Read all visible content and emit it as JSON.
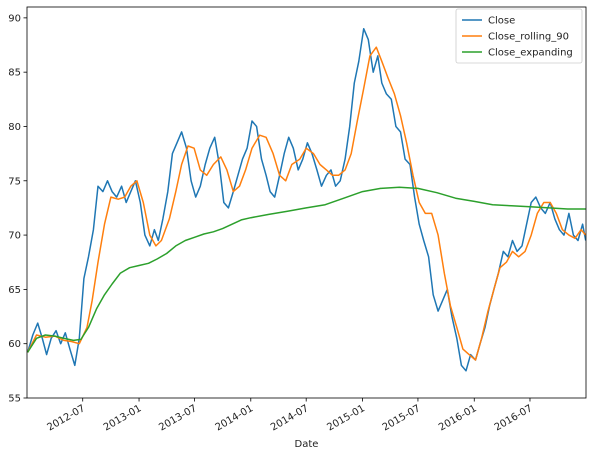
{
  "chart_data": {
    "type": "line",
    "title": "",
    "xlabel": "Date",
    "ylabel": "",
    "xlim": [
      "2012-01-01",
      "2016-12-31"
    ],
    "ylim": [
      55,
      91
    ],
    "grid": false,
    "legend_position": "top-right",
    "x_ticks": [
      "2012-07",
      "2013-01",
      "2013-07",
      "2014-01",
      "2014-07",
      "2015-01",
      "2015-07",
      "2016-01",
      "2016-07"
    ],
    "y_ticks": [
      55,
      60,
      65,
      70,
      75,
      80,
      85,
      90
    ],
    "series": [
      {
        "name": "Close",
        "color": "#1f77b4",
        "x": [
          "2012-01-03",
          "2012-01-20",
          "2012-02-05",
          "2012-02-20",
          "2012-03-05",
          "2012-03-20",
          "2012-04-05",
          "2012-04-20",
          "2012-05-05",
          "2012-05-20",
          "2012-06-05",
          "2012-06-20",
          "2012-07-05",
          "2012-07-20",
          "2012-08-05",
          "2012-08-20",
          "2012-09-05",
          "2012-09-20",
          "2012-10-05",
          "2012-10-20",
          "2012-11-05",
          "2012-11-20",
          "2012-12-05",
          "2012-12-20",
          "2013-01-05",
          "2013-01-20",
          "2013-02-05",
          "2013-02-20",
          "2013-03-05",
          "2013-03-20",
          "2013-04-05",
          "2013-04-20",
          "2013-05-05",
          "2013-05-20",
          "2013-06-05",
          "2013-06-20",
          "2013-07-05",
          "2013-07-20",
          "2013-08-05",
          "2013-08-20",
          "2013-09-05",
          "2013-09-20",
          "2013-10-05",
          "2013-10-20",
          "2013-11-05",
          "2013-11-20",
          "2013-12-05",
          "2013-12-20",
          "2014-01-05",
          "2014-01-20",
          "2014-02-05",
          "2014-02-20",
          "2014-03-05",
          "2014-03-20",
          "2014-04-05",
          "2014-04-20",
          "2014-05-05",
          "2014-05-20",
          "2014-06-05",
          "2014-06-20",
          "2014-07-05",
          "2014-07-20",
          "2014-08-05",
          "2014-08-20",
          "2014-09-05",
          "2014-09-20",
          "2014-10-05",
          "2014-10-20",
          "2014-11-05",
          "2014-11-20",
          "2014-12-05",
          "2014-12-20",
          "2015-01-05",
          "2015-01-20",
          "2015-02-05",
          "2015-02-20",
          "2015-03-05",
          "2015-03-20",
          "2015-04-05",
          "2015-04-20",
          "2015-05-05",
          "2015-05-20",
          "2015-06-05",
          "2015-06-20",
          "2015-07-05",
          "2015-07-20",
          "2015-08-05",
          "2015-08-20",
          "2015-09-05",
          "2015-09-20",
          "2015-10-05",
          "2015-10-20",
          "2015-11-05",
          "2015-11-20",
          "2015-12-05",
          "2015-12-20",
          "2016-01-05",
          "2016-01-20",
          "2016-02-05",
          "2016-02-20",
          "2016-03-05",
          "2016-03-20",
          "2016-04-05",
          "2016-04-20",
          "2016-05-05",
          "2016-05-20",
          "2016-06-05",
          "2016-06-20",
          "2016-07-05",
          "2016-07-20",
          "2016-08-05",
          "2016-08-20",
          "2016-09-05",
          "2016-09-20",
          "2016-10-05",
          "2016-10-20",
          "2016-11-05",
          "2016-11-20",
          "2016-12-05",
          "2016-12-20",
          "2016-12-30"
        ],
        "y": [
          59.2,
          60.8,
          61.9,
          60.5,
          59.0,
          60.5,
          61.2,
          60.0,
          61.0,
          59.5,
          58.0,
          60.5,
          66.0,
          68.0,
          70.5,
          74.5,
          74.0,
          75.0,
          74.0,
          73.5,
          74.5,
          73.0,
          74.0,
          75.0,
          73.0,
          70.0,
          69.0,
          70.5,
          69.5,
          71.5,
          74.0,
          77.5,
          78.5,
          79.5,
          78.0,
          75.0,
          73.5,
          74.5,
          76.5,
          78.0,
          79.0,
          76.5,
          73.0,
          72.5,
          74.0,
          75.5,
          77.0,
          78.0,
          80.5,
          80.0,
          77.0,
          75.5,
          74.0,
          73.5,
          75.5,
          77.5,
          79.0,
          78.0,
          76.0,
          77.0,
          78.5,
          77.5,
          76.0,
          74.5,
          75.5,
          76.0,
          74.5,
          75.0,
          77.0,
          80.0,
          84.0,
          86.0,
          89.0,
          88.0,
          85.0,
          86.5,
          84.0,
          83.0,
          82.5,
          80.0,
          79.5,
          77.0,
          76.5,
          73.5,
          71.0,
          69.5,
          68.0,
          64.5,
          63.0,
          64.0,
          65.0,
          62.5,
          60.5,
          58.0,
          57.5,
          59.0,
          58.5,
          60.0,
          61.5,
          63.5,
          65.0,
          66.5,
          68.5,
          68.0,
          69.5,
          68.5,
          69.0,
          71.0,
          73.0,
          73.5,
          72.5,
          72.0,
          73.0,
          71.5,
          70.5,
          70.0,
          72.0,
          70.0,
          69.5,
          71.0,
          69.5
        ]
      },
      {
        "name": "Close_rolling_90",
        "color": "#ff7f0e",
        "x": [
          "2012-01-03",
          "2012-02-01",
          "2012-03-01",
          "2012-04-01",
          "2012-05-01",
          "2012-05-25",
          "2012-06-20",
          "2012-07-15",
          "2012-08-01",
          "2012-08-20",
          "2012-09-10",
          "2012-10-01",
          "2012-10-25",
          "2012-11-15",
          "2012-12-05",
          "2012-12-25",
          "2013-01-15",
          "2013-02-05",
          "2013-02-25",
          "2013-03-15",
          "2013-04-10",
          "2013-05-01",
          "2013-05-20",
          "2013-06-10",
          "2013-06-30",
          "2013-07-20",
          "2013-08-10",
          "2013-09-01",
          "2013-09-25",
          "2013-10-15",
          "2013-11-05",
          "2013-11-25",
          "2013-12-15",
          "2014-01-05",
          "2014-01-30",
          "2014-02-20",
          "2014-03-15",
          "2014-04-05",
          "2014-04-25",
          "2014-05-15",
          "2014-06-10",
          "2014-07-01",
          "2014-07-25",
          "2014-08-15",
          "2014-09-05",
          "2014-09-25",
          "2014-10-15",
          "2014-11-05",
          "2014-11-25",
          "2014-12-15",
          "2015-01-05",
          "2015-01-25",
          "2015-02-15",
          "2015-03-05",
          "2015-03-25",
          "2015-04-15",
          "2015-05-05",
          "2015-05-25",
          "2015-06-15",
          "2015-07-05",
          "2015-07-25",
          "2015-08-15",
          "2015-09-05",
          "2015-09-25",
          "2015-10-15",
          "2015-11-05",
          "2015-11-25",
          "2015-12-15",
          "2016-01-05",
          "2016-01-25",
          "2016-02-15",
          "2016-03-05",
          "2016-03-25",
          "2016-04-15",
          "2016-05-05",
          "2016-05-25",
          "2016-06-15",
          "2016-07-05",
          "2016-07-25",
          "2016-08-15",
          "2016-09-05",
          "2016-09-25",
          "2016-10-15",
          "2016-11-05",
          "2016-11-25",
          "2016-12-15",
          "2016-12-30"
        ],
        "y": [
          59.2,
          60.8,
          60.6,
          60.7,
          60.3,
          60.2,
          60.0,
          61.5,
          64.0,
          67.5,
          71.0,
          73.5,
          73.3,
          73.5,
          74.5,
          75.0,
          73.0,
          70.0,
          69.0,
          69.5,
          71.5,
          74.0,
          76.5,
          78.2,
          78.0,
          76.0,
          75.5,
          76.5,
          77.2,
          76.0,
          74.0,
          74.5,
          76.0,
          78.0,
          79.2,
          79.0,
          77.5,
          75.5,
          75.0,
          76.5,
          77.0,
          78.0,
          77.5,
          76.5,
          76.0,
          75.5,
          75.5,
          76.0,
          77.5,
          80.5,
          83.5,
          86.5,
          87.3,
          86.0,
          84.5,
          83.0,
          81.0,
          78.5,
          75.5,
          73.0,
          72.0,
          72.0,
          70.0,
          66.5,
          63.5,
          61.5,
          59.5,
          59.0,
          58.5,
          60.5,
          63.0,
          65.0,
          67.0,
          67.5,
          68.5,
          68.0,
          68.5,
          70.0,
          72.0,
          73.0,
          73.0,
          72.0,
          70.5,
          70.0,
          69.7,
          70.5,
          70.0
        ]
      },
      {
        "name": "Close_expanding",
        "color": "#2ca02c",
        "x": [
          "2012-01-03",
          "2012-02-01",
          "2012-03-01",
          "2012-04-01",
          "2012-05-01",
          "2012-06-01",
          "2012-06-25",
          "2012-07-20",
          "2012-08-15",
          "2012-09-10",
          "2012-10-05",
          "2012-11-01",
          "2012-12-01",
          "2013-01-01",
          "2013-02-01",
          "2013-03-01",
          "2013-04-01",
          "2013-05-01",
          "2013-06-01",
          "2013-07-01",
          "2013-08-01",
          "2013-09-01",
          "2013-10-01",
          "2013-11-01",
          "2013-12-01",
          "2014-01-01",
          "2014-03-01",
          "2014-05-01",
          "2014-07-01",
          "2014-09-01",
          "2014-11-01",
          "2015-01-01",
          "2015-03-01",
          "2015-05-01",
          "2015-07-01",
          "2015-09-01",
          "2015-11-01",
          "2016-01-01",
          "2016-03-01",
          "2016-05-01",
          "2016-07-01",
          "2016-09-01",
          "2016-11-01",
          "2016-12-30"
        ],
        "y": [
          59.2,
          60.5,
          60.8,
          60.7,
          60.5,
          60.3,
          60.4,
          61.5,
          63.2,
          64.5,
          65.5,
          66.5,
          67.0,
          67.2,
          67.4,
          67.8,
          68.3,
          69.0,
          69.5,
          69.8,
          70.1,
          70.3,
          70.6,
          71.0,
          71.4,
          71.6,
          71.9,
          72.2,
          72.5,
          72.8,
          73.4,
          74.0,
          74.3,
          74.4,
          74.3,
          73.9,
          73.4,
          73.1,
          72.8,
          72.7,
          72.6,
          72.5,
          72.4,
          72.4
        ]
      }
    ]
  }
}
